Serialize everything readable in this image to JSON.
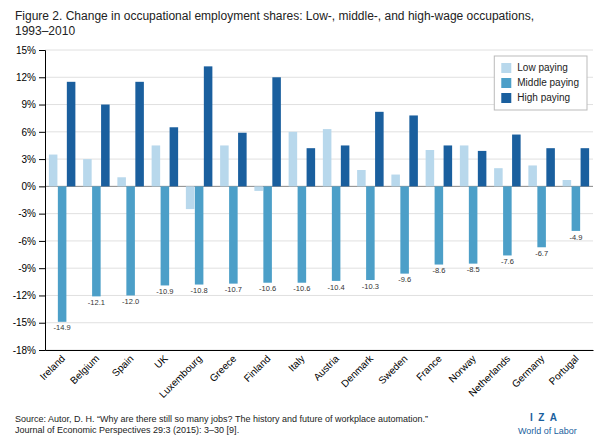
{
  "chart_data": {
    "type": "bar",
    "title": "Figure 2. Change in occupational employment shares: Low-, middle-, and high-wage occupations, 1993–2010",
    "categories": [
      "Ireland",
      "Belgium",
      "Spain",
      "UK",
      "Luxembourg",
      "Greece",
      "Finland",
      "Italy",
      "Austria",
      "Denmark",
      "Sweden",
      "France",
      "Norway",
      "Netherlands",
      "Germany",
      "Portugal"
    ],
    "series": [
      {
        "name": "Low paying",
        "color": "#b8d8ec",
        "values": [
          3.5,
          3.0,
          1.0,
          4.5,
          -2.5,
          4.5,
          -0.5,
          6.0,
          6.3,
          1.8,
          1.3,
          4.0,
          4.5,
          2.0,
          2.3,
          0.7
        ]
      },
      {
        "name": "Middle paying",
        "color": "#4c9fc8",
        "values": [
          -14.9,
          -12.1,
          -12.0,
          -10.9,
          -10.8,
          -10.7,
          -10.6,
          -10.6,
          -10.4,
          -10.3,
          -9.6,
          -8.6,
          -8.5,
          -7.6,
          -6.7,
          -4.9
        ],
        "data_labels": true,
        "value_labels": [
          "-14.9",
          "-12.1",
          "-12.0",
          "-10.9",
          "-10.8",
          "-10.7",
          "-10.6",
          "-10.6",
          "-10.4",
          "-10.3",
          "-9.6",
          "-8.6",
          "-8.5",
          "-7.6",
          "-6.7",
          "-4.9"
        ]
      },
      {
        "name": "High paying",
        "color": "#1a5f9e",
        "values": [
          11.5,
          9.0,
          11.5,
          6.5,
          13.2,
          5.9,
          12.0,
          4.2,
          4.5,
          8.2,
          7.8,
          4.5,
          3.9,
          5.7,
          4.2,
          4.2
        ]
      }
    ],
    "ylim": [
      -18,
      15
    ],
    "yticks": [
      {
        "value": -18,
        "label": "-18%"
      },
      {
        "value": -15,
        "label": "-15%"
      },
      {
        "value": -12,
        "label": "-12%"
      },
      {
        "value": -9,
        "label": "-9%"
      },
      {
        "value": -6,
        "label": "-6%"
      },
      {
        "value": -3,
        "label": "-3%"
      },
      {
        "value": 0,
        "label": "0%"
      },
      {
        "value": 3,
        "label": "3%"
      },
      {
        "value": 6,
        "label": "6%"
      },
      {
        "value": 9,
        "label": "9%"
      },
      {
        "value": 12,
        "label": "12%"
      },
      {
        "value": 15,
        "label": "15%"
      }
    ],
    "grid": true,
    "legend": "upper right",
    "annotations": [
      "Source: Autor, D. H. “Why are there still so many jobs? The history and future of workplace automation.” Journal of Economic Perspectives 29:3 (2015): 3–30 [9].",
      "I  Z  A",
      "World of Labor"
    ]
  }
}
